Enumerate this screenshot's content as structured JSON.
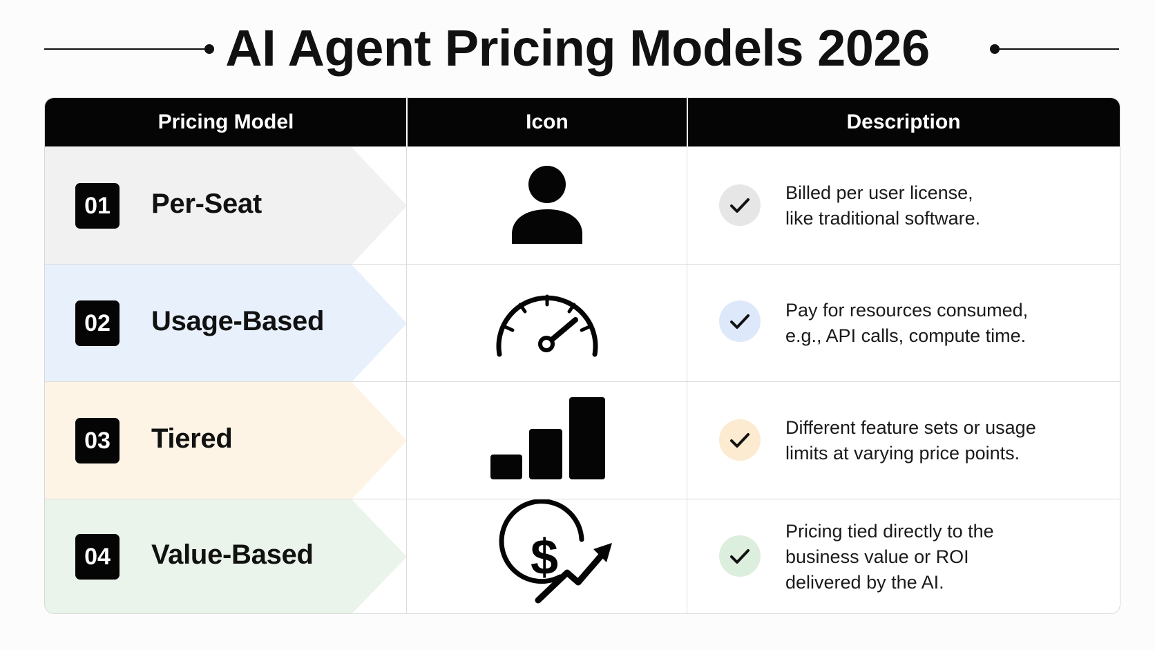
{
  "title": "AI Agent Pricing Models 2026",
  "table": {
    "headers": {
      "model": "Pricing Model",
      "icon": "Icon",
      "description": "Description"
    },
    "rows": [
      {
        "number": "01",
        "name": "Per-Seat",
        "icon": "person-icon",
        "description": [
          "Billed per user license,",
          "like traditional software."
        ],
        "row_color": "#f1f1f1",
        "check_color": "#e6e6e6"
      },
      {
        "number": "02",
        "name": "Usage-Based",
        "icon": "speedometer-icon",
        "description": [
          "Pay for resources consumed,",
          "e.g., API calls, compute time."
        ],
        "row_color": "#e8f0fb",
        "check_color": "#dde9fa"
      },
      {
        "number": "03",
        "name": "Tiered",
        "icon": "bar-chart-icon",
        "description": [
          "Different feature sets or usage",
          "limits at varying price points."
        ],
        "row_color": "#fdf4e5",
        "check_color": "#fcebd0"
      },
      {
        "number": "04",
        "name": "Value-Based",
        "icon": "dollar-growth-icon",
        "description": [
          "Pricing tied directly to the",
          "business value or ROI",
          "delivered by the AI."
        ],
        "row_color": "#eaf4ea",
        "check_color": "#dcefdf"
      }
    ]
  }
}
